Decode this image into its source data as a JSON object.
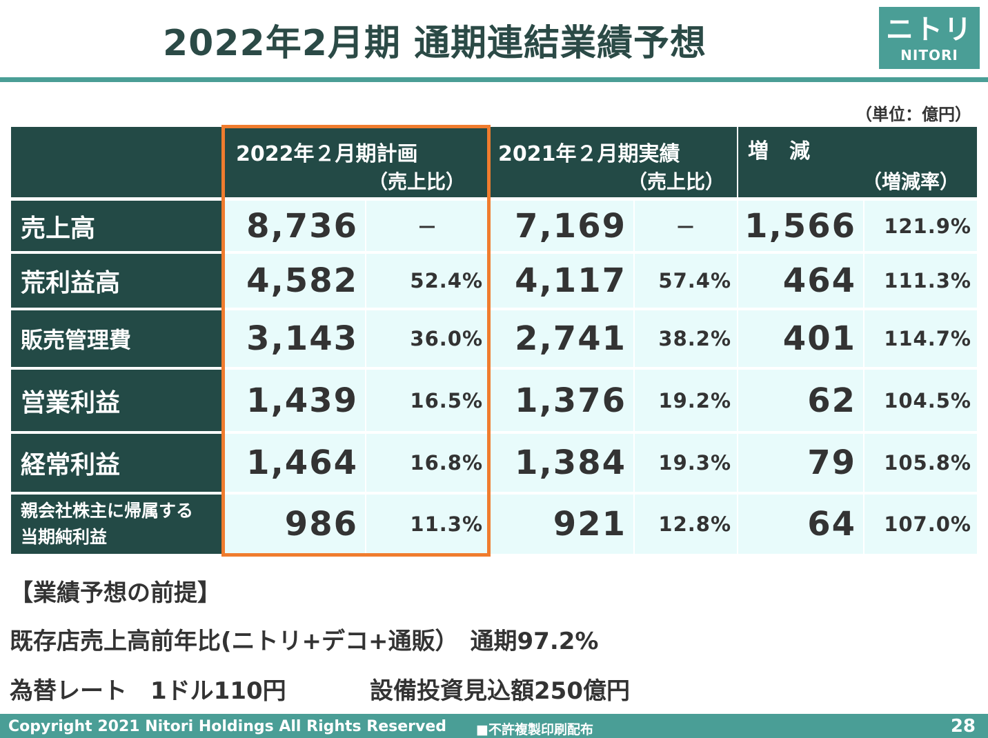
{
  "title": "2022年2月期 通期連結業績予想",
  "logo": {
    "mark": "ニトリ",
    "sub": "NITORI"
  },
  "unit": "（単位：億円）",
  "table": {
    "headers": {
      "plan": "2022年２月期計画",
      "plan_sub": "（売上比）",
      "actual": "2021年２月期実績",
      "actual_sub": "（売上比）",
      "change": "増　減",
      "change_sub": "（増減率）"
    },
    "rows": [
      {
        "label": "売上高",
        "plan": "8,736",
        "plan_pct": "－",
        "actual": "7,169",
        "actual_pct": "－",
        "diff": "1,566",
        "rate": "121.9%"
      },
      {
        "label": "荒利益高",
        "plan": "4,582",
        "plan_pct": "52.4%",
        "actual": "4,117",
        "actual_pct": "57.4%",
        "diff": "464",
        "rate": "111.3%"
      },
      {
        "label": "販売管理費",
        "plan": "3,143",
        "plan_pct": "36.0%",
        "actual": "2,741",
        "actual_pct": "38.2%",
        "diff": "401",
        "rate": "114.7%"
      },
      {
        "label": "営業利益",
        "plan": "1,439",
        "plan_pct": "16.5%",
        "actual": "1,376",
        "actual_pct": "19.2%",
        "diff": "62",
        "rate": "104.5%"
      },
      {
        "label": "経常利益",
        "plan": "1,464",
        "plan_pct": "16.8%",
        "actual": "1,384",
        "actual_pct": "19.3%",
        "diff": "79",
        "rate": "105.8%"
      },
      {
        "label": "親会社株主に帰属する当期純利益",
        "plan": "986",
        "plan_pct": "11.3%",
        "actual": "921",
        "actual_pct": "12.8%",
        "diff": "64",
        "rate": "107.0%"
      }
    ]
  },
  "premise": {
    "heading": "【業績予想の前提】",
    "line1": "既存店売上高前年比(ニトリ+デコ+通販）　通期97.2%",
    "line2a": "為替レート　1ドル110円",
    "line2b": "設備投資見込額250億円"
  },
  "footer": {
    "copyright": "Copyright 2021 Nitori Holdings All Rights Reserved",
    "note": "■不許複製印刷配布",
    "page": "28"
  },
  "colors": {
    "header_bg": "#234a46",
    "cell_bg": "#e8fbfb",
    "accent": "#4a9e96",
    "highlight": "#f07c2e"
  }
}
